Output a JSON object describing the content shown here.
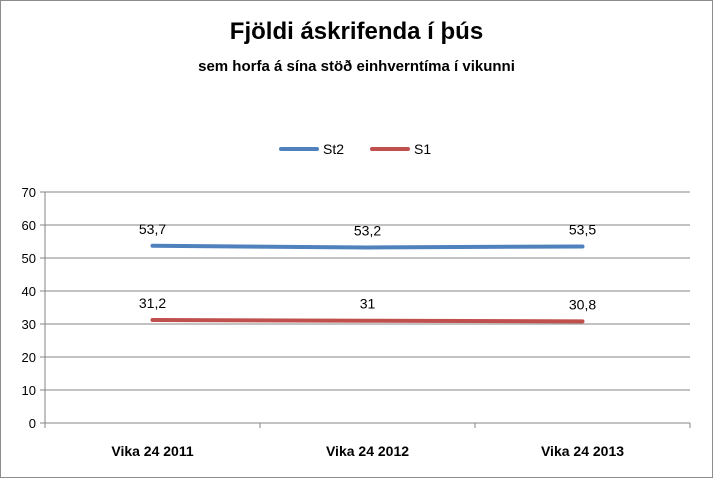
{
  "chart_data": {
    "type": "line",
    "title": "Fjöldi áskrifenda í þús",
    "subtitle": "sem horfa á sína stöð einhverntíma í vikunni",
    "categories": [
      "Vika 24 2011",
      "Vika 24 2012",
      "Vika 24 2013"
    ],
    "series": [
      {
        "name": "St2",
        "values": [
          53.7,
          53.2,
          53.5
        ],
        "labels": [
          "53,7",
          "53,2",
          "53,5"
        ],
        "color": "#4f81bd"
      },
      {
        "name": "S1",
        "values": [
          31.2,
          31,
          30.8
        ],
        "labels": [
          "31,2",
          "31",
          "30,8"
        ],
        "color": "#c0504d"
      }
    ],
    "ylim": [
      0,
      70
    ],
    "yticks": [
      0,
      10,
      20,
      30,
      40,
      50,
      60,
      70
    ],
    "grid": true,
    "legend": "top-center"
  }
}
